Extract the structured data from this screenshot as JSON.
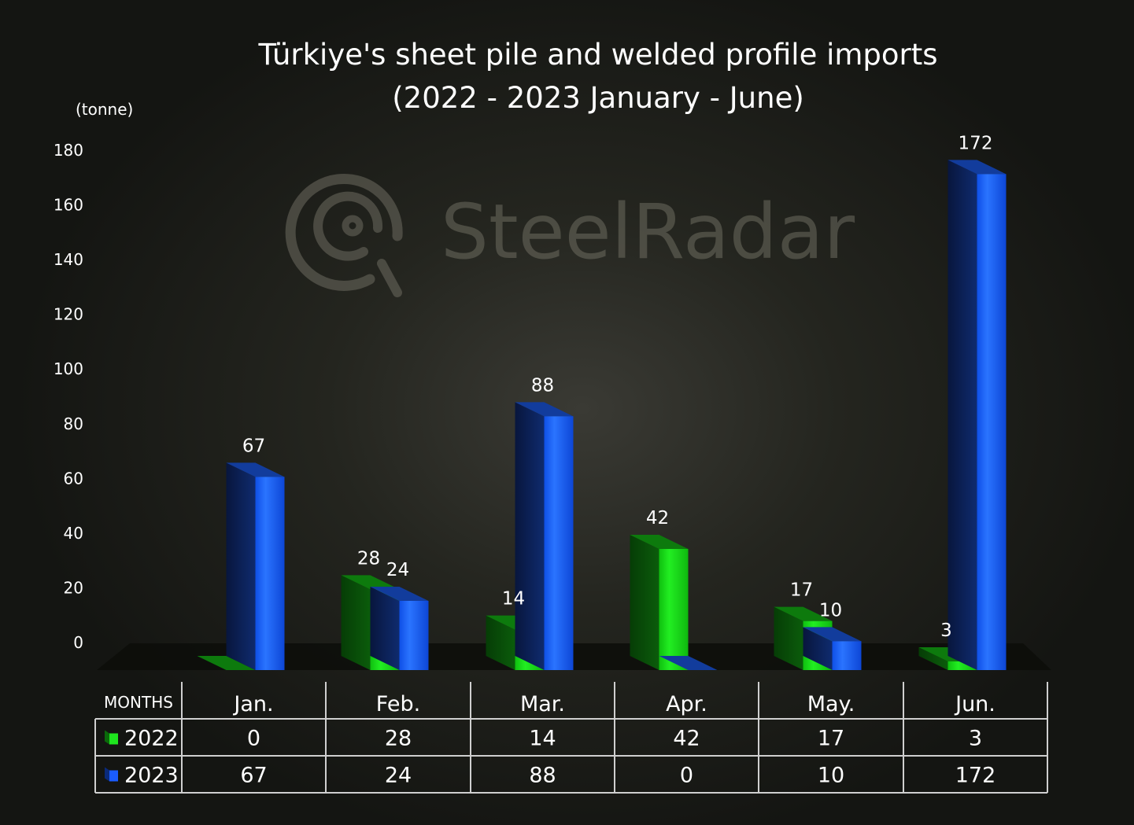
{
  "chart_data": {
    "type": "bar",
    "title": "Türkiye's sheet pile and welded profile imports",
    "subtitle": "(2022 - 2023 January - June)",
    "unit_label": "(tonne)",
    "watermark": "SteelRadar",
    "categories": [
      "Jan.",
      "Feb.",
      "Mar.",
      "Apr.",
      "May.",
      "Jun."
    ],
    "series": [
      {
        "name": "2022",
        "values": [
          0,
          28,
          14,
          42,
          17,
          3
        ],
        "color": "#1ee51e"
      },
      {
        "name": "2023",
        "values": [
          67,
          24,
          88,
          0,
          10,
          172
        ],
        "color": "#1a5cff"
      }
    ],
    "y_ticks": [
      0,
      20,
      40,
      60,
      80,
      100,
      120,
      140,
      160,
      180
    ],
    "ylim": [
      0,
      180
    ],
    "grid": false,
    "legend": "data-table",
    "table_header": "MONTHS"
  }
}
